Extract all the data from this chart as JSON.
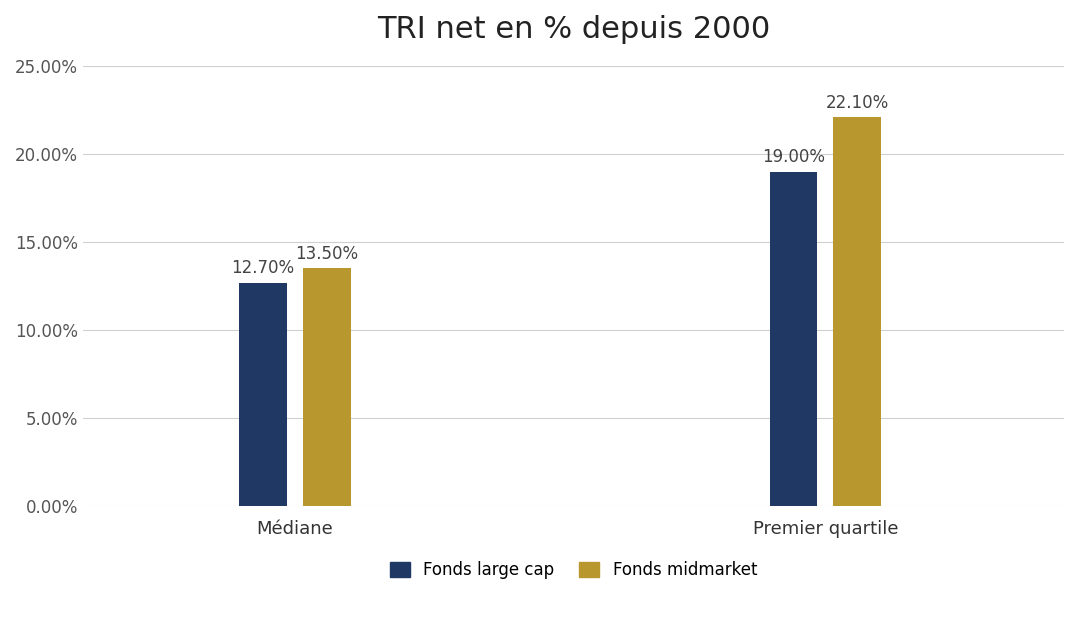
{
  "title": "TRI net en % depuis 2000",
  "categories": [
    "Médiane",
    "Premier quartile"
  ],
  "series": [
    {
      "name": "Fonds large cap",
      "color": "#1f3864",
      "values": [
        0.127,
        0.19
      ]
    },
    {
      "name": "Fonds midmarket",
      "color": "#b8972e",
      "values": [
        0.135,
        0.221
      ]
    }
  ],
  "bar_labels": [
    [
      "12.70%",
      "19.00%"
    ],
    [
      "13.50%",
      "22.10%"
    ]
  ],
  "ylim": [
    0,
    0.25
  ],
  "yticks": [
    0.0,
    0.05,
    0.1,
    0.15,
    0.2,
    0.25
  ],
  "ytick_labels": [
    "0.00%",
    "5.00%",
    "10.00%",
    "15.00%",
    "20.00%",
    "25.00%"
  ],
  "title_fontsize": 22,
  "tick_fontsize": 12,
  "legend_fontsize": 12,
  "bar_width": 0.18,
  "group_centers": [
    1.0,
    3.0
  ],
  "xlim": [
    0.2,
    3.9
  ],
  "background_color": "#ffffff",
  "grid_color": "#d0d0d0",
  "annotation_fontsize": 12,
  "annotation_color": "#444444"
}
